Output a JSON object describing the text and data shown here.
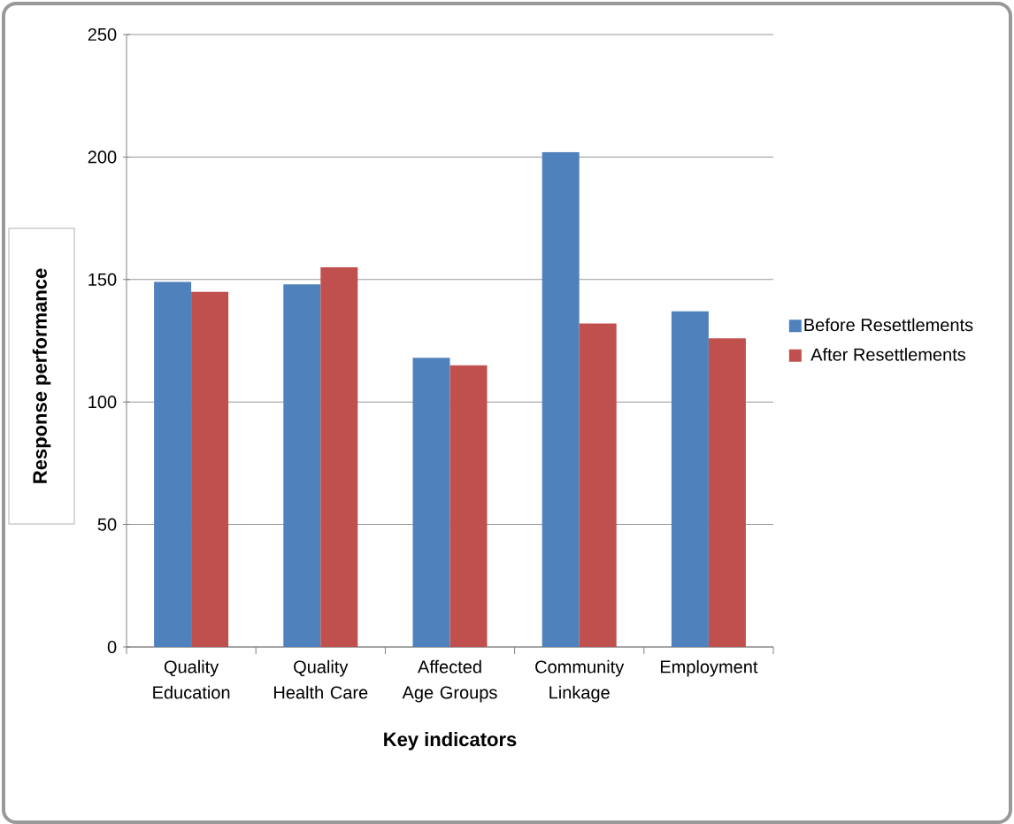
{
  "chart_data": {
    "type": "bar",
    "xlabel": "Key indicators",
    "ylabel": "Response performance",
    "categories": [
      "Quality Education",
      "Quality Health Care",
      "Affected Age Groups",
      "Community Linkage",
      "Employment"
    ],
    "series": [
      {
        "name": "Before Resettlements",
        "color": "#4f81bd",
        "values": [
          149,
          148,
          118,
          202,
          137
        ]
      },
      {
        "name": "After Resettlements",
        "color": "#c0504d",
        "values": [
          145,
          155,
          115,
          132,
          126
        ]
      }
    ],
    "ylim": [
      0,
      250
    ],
    "yticks": [
      0,
      50,
      100,
      150,
      200,
      250
    ],
    "grid": "y",
    "legend": "right"
  }
}
